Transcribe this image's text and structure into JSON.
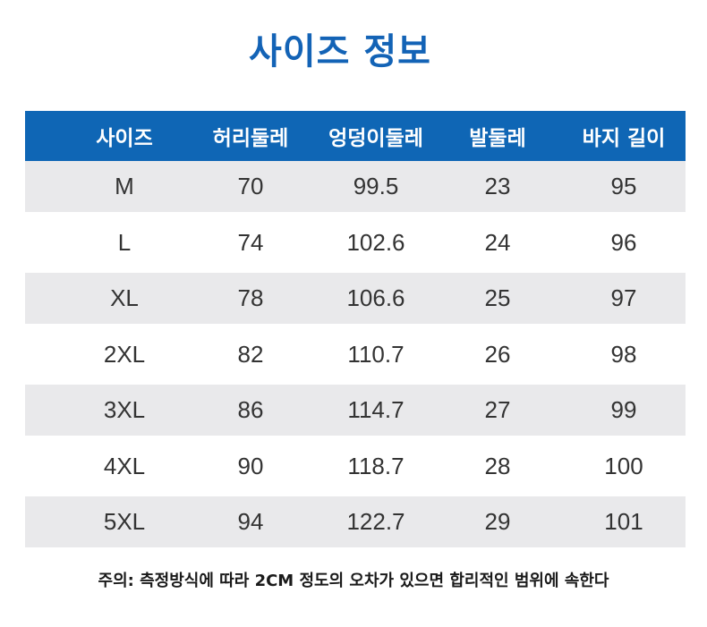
{
  "title": "사이즈 정보",
  "table": {
    "headers": [
      "사이즈",
      "허리둘레",
      "엉덩이둘레",
      "발둘레",
      "바지 길이"
    ],
    "rows": [
      [
        "M",
        "70",
        "99.5",
        "23",
        "95"
      ],
      [
        "L",
        "74",
        "102.6",
        "24",
        "96"
      ],
      [
        "XL",
        "78",
        "106.6",
        "25",
        "97"
      ],
      [
        "2XL",
        "82",
        "110.7",
        "26",
        "98"
      ],
      [
        "3XL",
        "86",
        "114.7",
        "27",
        "99"
      ],
      [
        "4XL",
        "90",
        "118.7",
        "28",
        "100"
      ],
      [
        "5XL",
        "94",
        "122.7",
        "29",
        "101"
      ]
    ]
  },
  "note": "주의: 측정방식에 따라 2CM 정도의 오차가 있으면 합리적인 범위에 속한다",
  "colors": {
    "accent": "#0f66b5",
    "row_shade": "#e9e9eb"
  }
}
